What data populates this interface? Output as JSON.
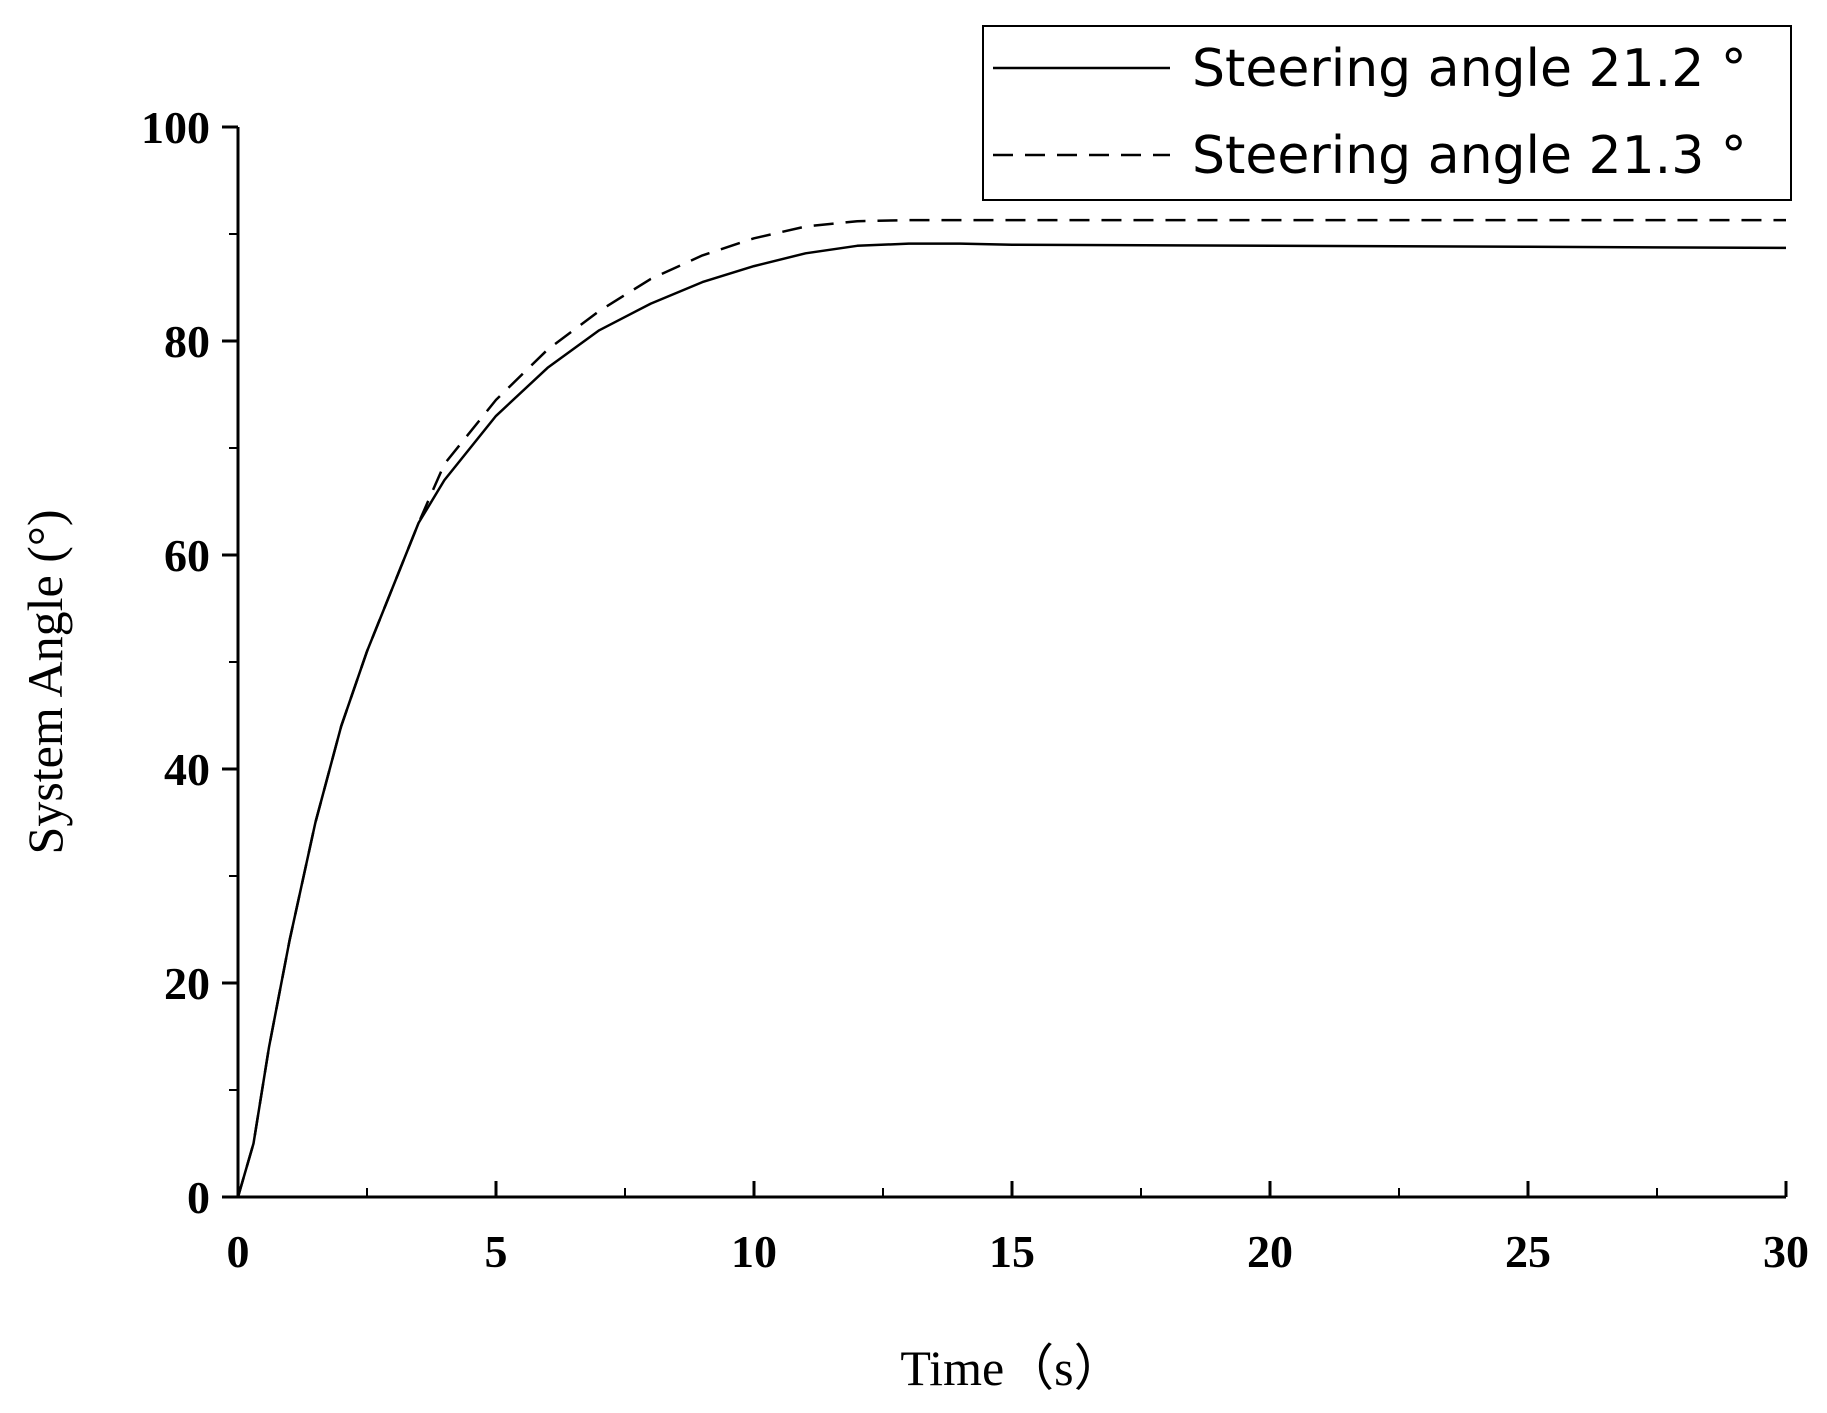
{
  "chart_data": {
    "type": "line",
    "title": "",
    "xlabel": "Time（s）",
    "ylabel": "System Angle (°)",
    "xlim": [
      0,
      30
    ],
    "ylim": [
      0,
      100
    ],
    "x_ticks": [
      0,
      5,
      10,
      15,
      20,
      25,
      30
    ],
    "y_ticks": [
      0,
      20,
      40,
      60,
      80,
      100
    ],
    "grid": false,
    "legend": "top-right",
    "series": [
      {
        "name": "Steering angle 21.2 °",
        "style": "solid",
        "color": "#000000",
        "x": [
          0,
          0.3,
          0.6,
          1,
          1.5,
          2,
          2.5,
          3,
          3.5,
          4,
          5,
          6,
          7,
          8,
          9,
          10,
          11,
          12,
          13,
          14,
          15,
          20,
          25,
          30
        ],
        "y": [
          0,
          5,
          14,
          24,
          35,
          44,
          51,
          57,
          63,
          67,
          73,
          77.5,
          81,
          83.5,
          85.5,
          87,
          88.2,
          88.9,
          89.1,
          89.1,
          89,
          88.9,
          88.8,
          88.7
        ]
      },
      {
        "name": "Steering angle 21.3 °",
        "style": "dashed",
        "color": "#000000",
        "x": [
          0,
          0.3,
          0.6,
          1,
          1.5,
          2,
          2.5,
          3,
          3.5,
          4,
          5,
          6,
          7,
          8,
          9,
          10,
          11,
          12,
          13,
          14,
          15,
          20,
          25,
          30
        ],
        "y": [
          0,
          5,
          14,
          24,
          35,
          44,
          51,
          57,
          63,
          68.5,
          74.5,
          79.2,
          82.8,
          85.8,
          88,
          89.6,
          90.7,
          91.2,
          91.3,
          91.3,
          91.3,
          91.3,
          91.3,
          91.3
        ]
      }
    ]
  }
}
